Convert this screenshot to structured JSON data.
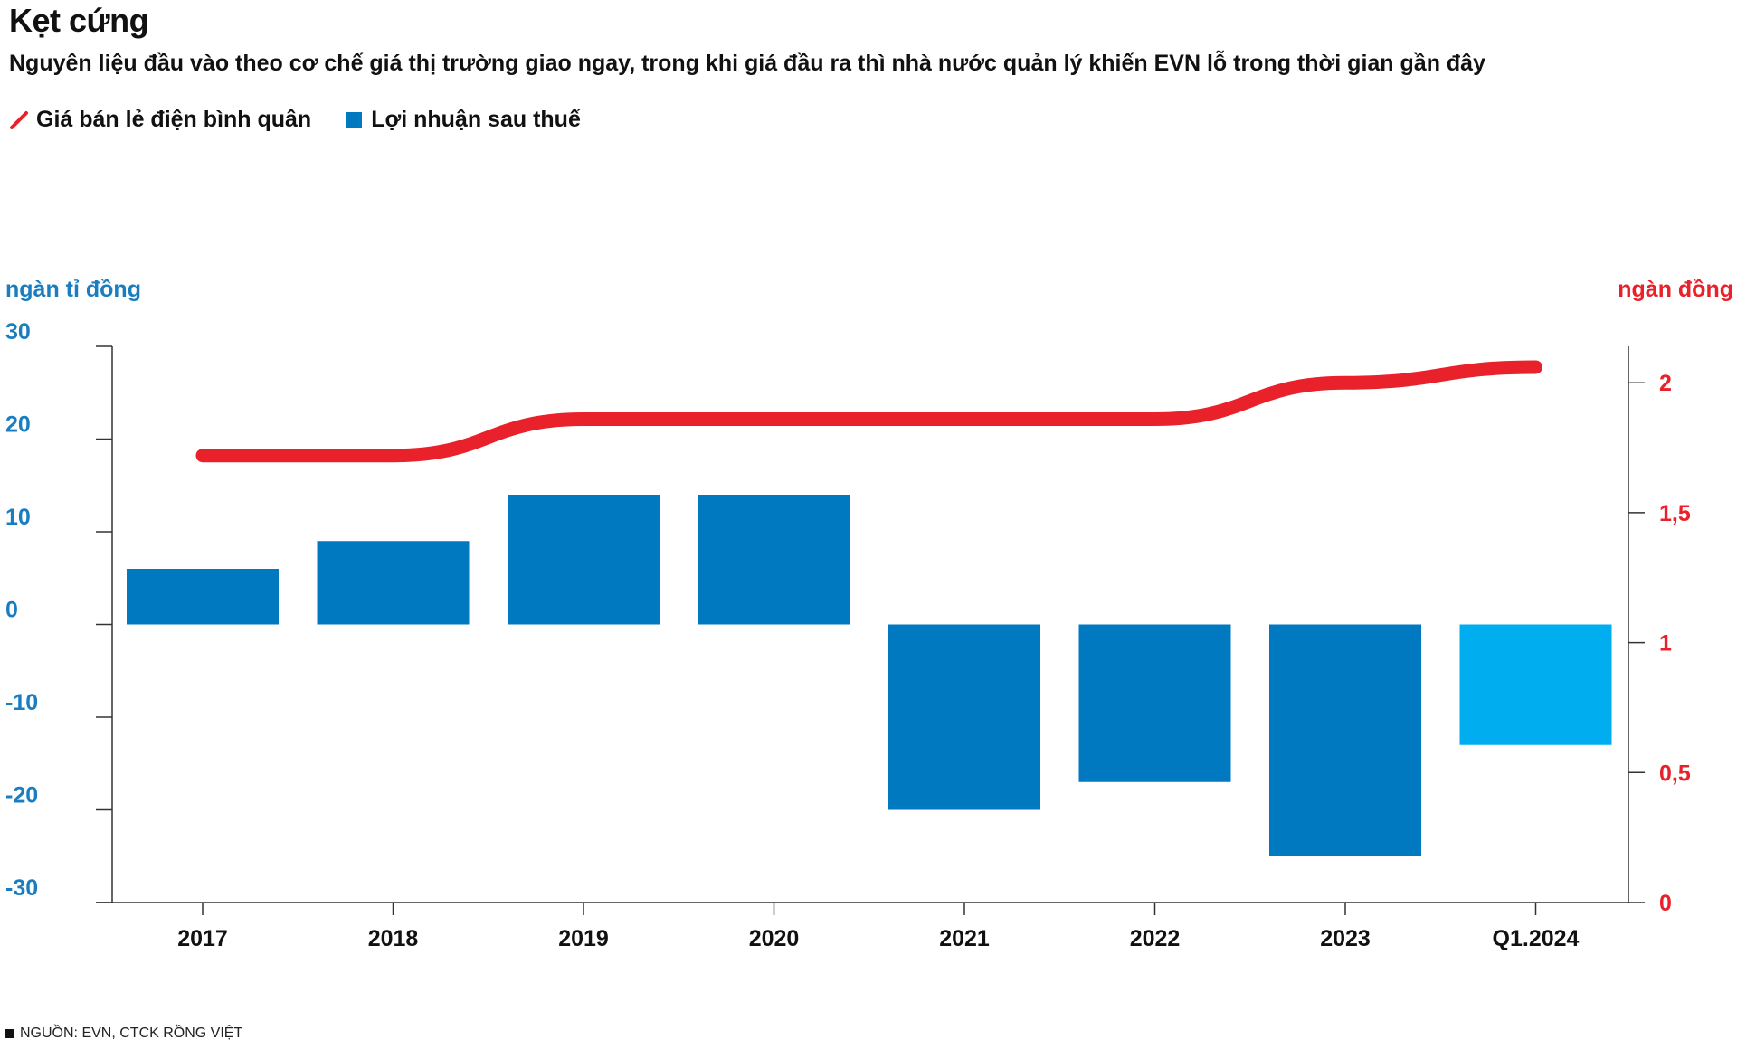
{
  "title": "Kẹt cứng",
  "subtitle": "Nguyên liệu đầu vào theo cơ chế giá thị trường giao ngay, trong khi giá đầu ra thì nhà nước quản lý khiến EVN lỗ trong thời gian gần đây",
  "source": "NGUỒN: EVN, CTCK RỒNG VIỆT",
  "colors": {
    "line": "#e8212b",
    "bar": "#0079c1",
    "bar_highlight": "#00aeef",
    "left_axis": "#1a7dc0",
    "right_axis": "#e8212b",
    "axis": "#333333"
  },
  "chart_data": {
    "type": "bar+line",
    "categories": [
      "2017",
      "2018",
      "2019",
      "2020",
      "2021",
      "2022",
      "2023",
      "Q1.2024"
    ],
    "legend": {
      "line_label": "Giá bán lẻ điện bình quân",
      "bar_label": "Lợi nhuận sau thuế"
    },
    "left_axis": {
      "label": "ngàn tỉ đồng",
      "ticks": [
        30,
        20,
        10,
        0,
        -10,
        -20,
        -30
      ],
      "tick_labels": [
        "30",
        "20",
        "10",
        "0",
        "-10",
        "-20",
        "-30"
      ],
      "ylim": [
        -30,
        30
      ]
    },
    "right_axis": {
      "label": "ngàn đồng",
      "ticks": [
        2,
        1.5,
        1,
        0.5,
        0
      ],
      "tick_labels": [
        "2",
        "1,5",
        "1",
        "0,5",
        "0"
      ],
      "ylim": [
        0,
        2.14
      ]
    },
    "series": [
      {
        "name": "Lợi nhuận sau thuế",
        "type": "bar",
        "axis": "left",
        "values": [
          6,
          9,
          14,
          14,
          -20,
          -17,
          -25,
          -13
        ],
        "highlight_index": 7
      },
      {
        "name": "Giá bán lẻ điện bình quân",
        "type": "line",
        "axis": "right",
        "values": [
          1.72,
          1.72,
          1.86,
          1.86,
          1.86,
          1.86,
          2.0,
          2.06
        ]
      }
    ]
  }
}
